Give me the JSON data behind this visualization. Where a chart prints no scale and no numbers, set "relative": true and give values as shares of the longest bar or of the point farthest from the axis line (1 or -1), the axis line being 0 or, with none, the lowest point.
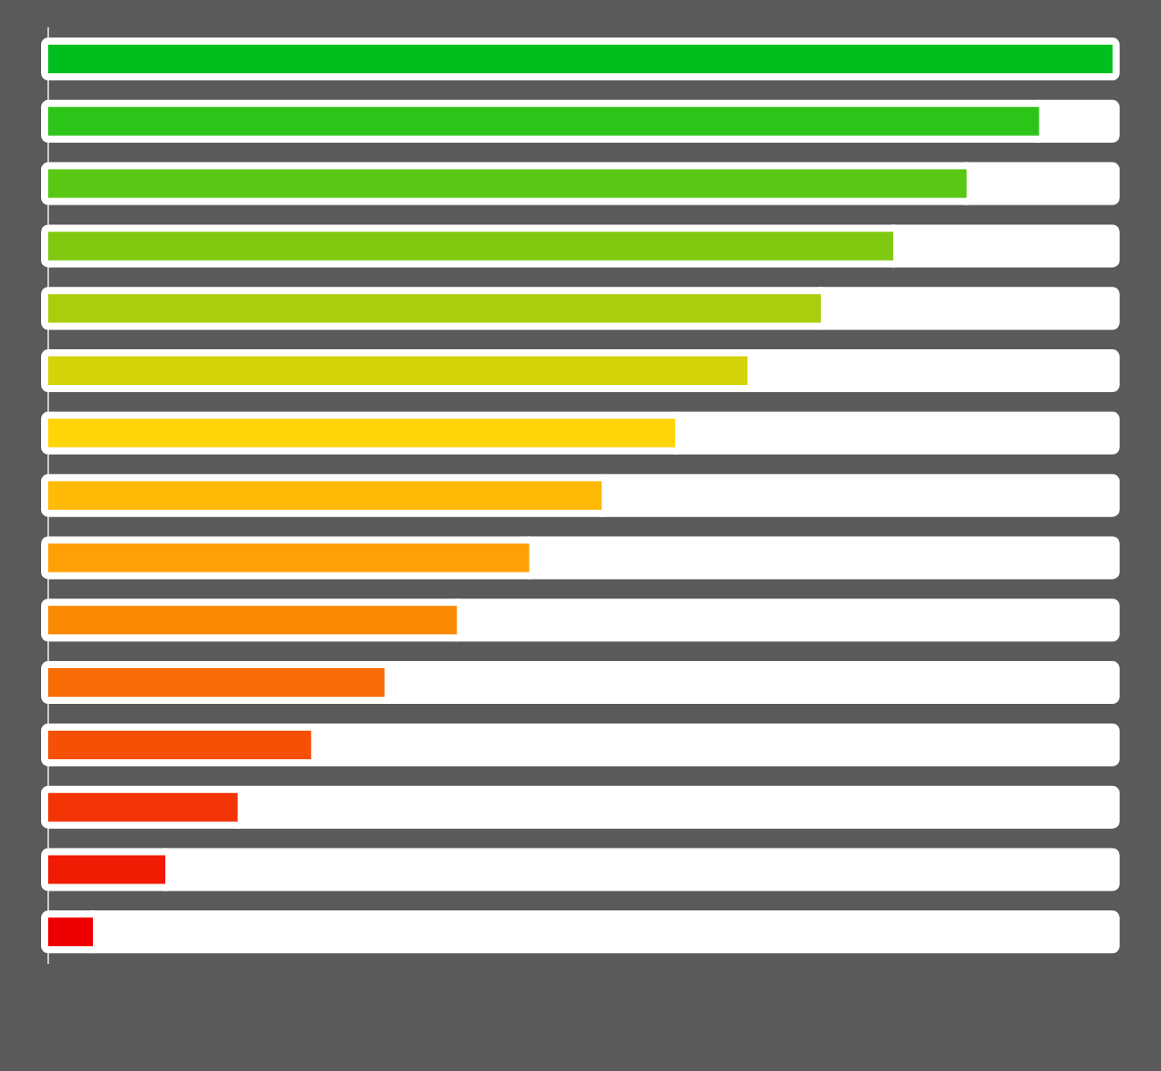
{
  "chart_data": {
    "type": "bar",
    "orientation": "horizontal",
    "stacked": true,
    "relative": true,
    "categories": [
      null,
      null,
      null,
      null,
      null,
      null,
      null,
      null,
      null,
      null,
      null,
      null,
      null,
      null,
      null
    ],
    "series": [
      {
        "colors": [
          "#00be1e",
          "#2dc41a",
          "#58c814",
          "#80c910",
          "#a9ce0c",
          "#d4d208",
          "#ffd507",
          "#ffba05",
          "#ffa005",
          "#fb8a03",
          "#f76c05",
          "#f55005",
          "#f33405",
          "#f11a02",
          "#ee0000"
        ],
        "values": [
          1.0,
          0.931,
          0.863,
          0.794,
          0.726,
          0.657,
          0.589,
          0.52,
          0.452,
          0.384,
          0.316,
          0.247,
          0.178,
          0.11,
          0.042
        ]
      },
      {
        "color": "#ffffff",
        "values": [
          0.0,
          0.069,
          0.137,
          0.206,
          0.274,
          0.343,
          0.411,
          0.48,
          0.548,
          0.616,
          0.684,
          0.753,
          0.822,
          0.89,
          0.958
        ]
      }
    ]
  }
}
